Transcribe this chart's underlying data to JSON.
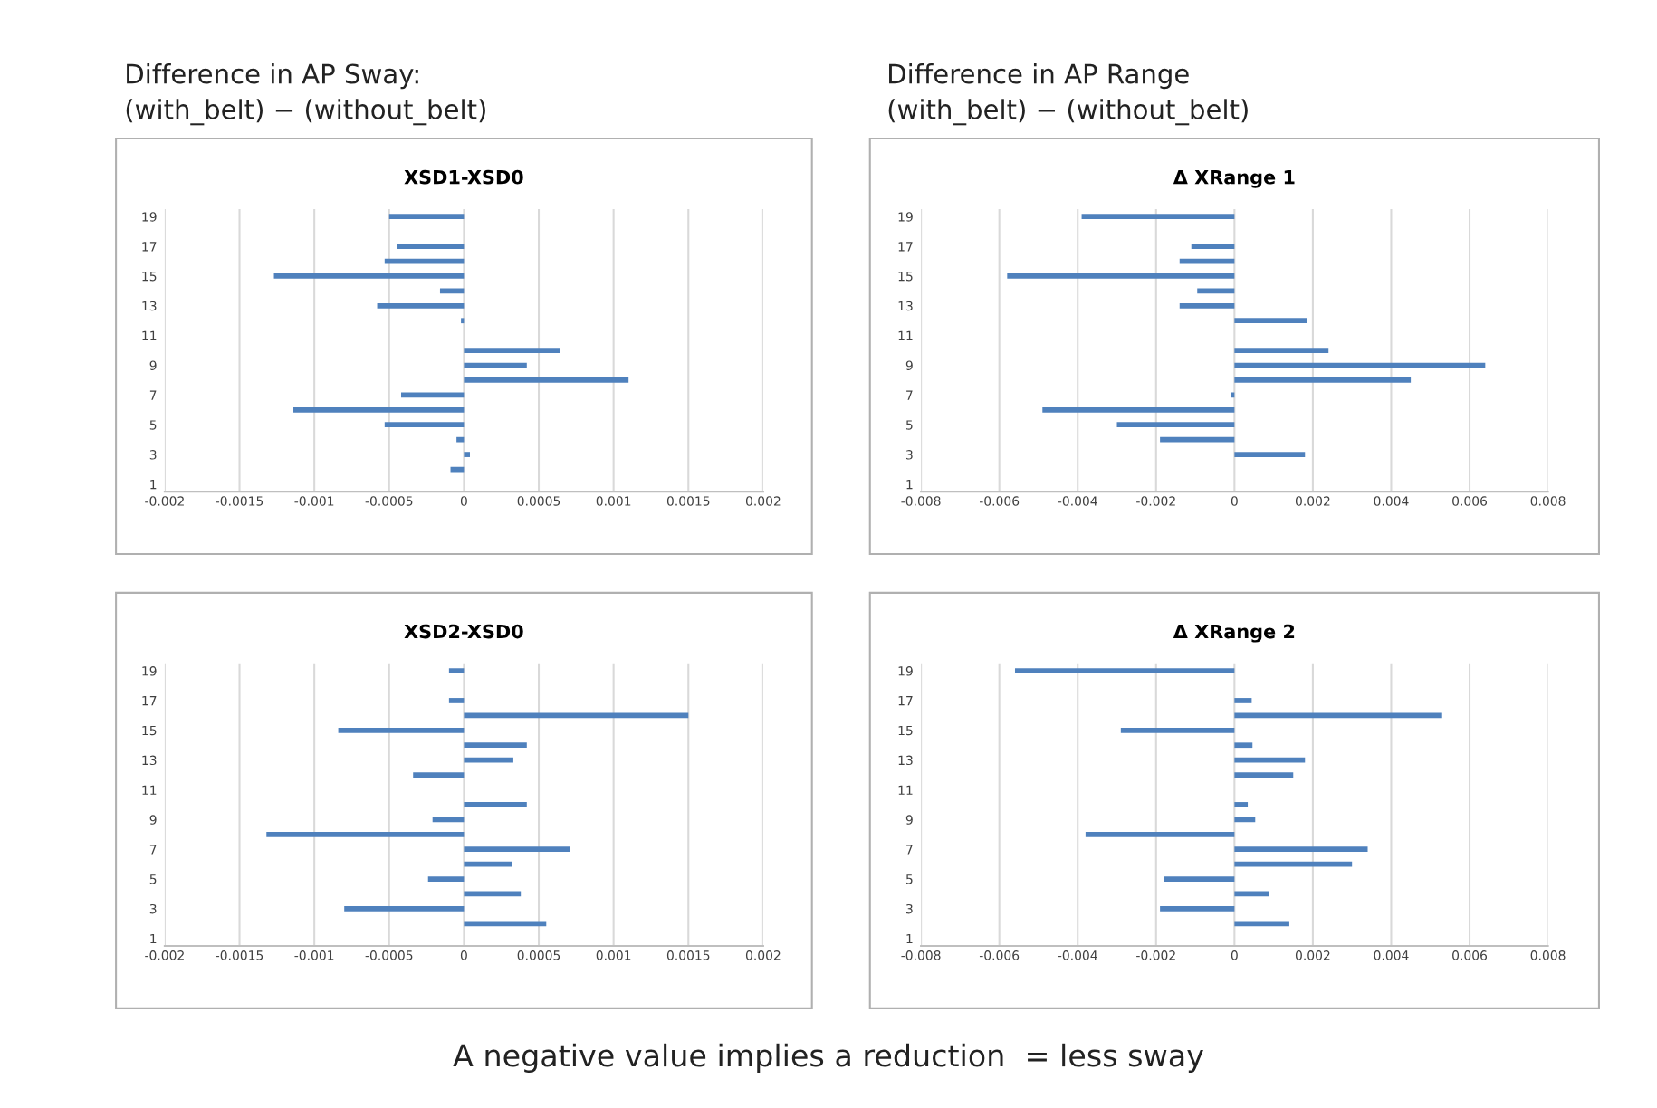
{
  "chart_data": [
    {
      "type": "bar",
      "orientation": "horizontal",
      "title": "XSD1-XSD0",
      "annotations": [
        "Difference in AP Sway:\n(with_belt) − (without_belt)"
      ],
      "categories": [
        "19",
        null,
        "17",
        null,
        "15",
        null,
        "13",
        null,
        "11",
        null,
        "9",
        null,
        "7",
        null,
        "5",
        null,
        "3",
        null,
        "1"
      ],
      "values": [
        -0.0005,
        0,
        -0.00045,
        -0.00053,
        -0.00127,
        -0.00016,
        -0.00058,
        -2e-05,
        0,
        0.00064,
        0.00042,
        0.0011,
        -0.00042,
        -0.00114,
        -0.00053,
        -5e-05,
        4e-05,
        -9e-05,
        0
      ],
      "color": "#4f81bd",
      "xlim": [
        -0.002,
        0.002
      ],
      "xticks": [
        -0.002,
        -0.0015,
        -0.001,
        -0.0005,
        0,
        0.0005,
        0.001,
        0.0015,
        0.002
      ],
      "grid": "x"
    },
    {
      "type": "bar",
      "orientation": "horizontal",
      "title": "Δ XRange 1",
      "annotations": [
        " Difference in AP Range\n (with_belt) − (without_belt)"
      ],
      "categories": [
        "19",
        null,
        "17",
        null,
        "15",
        null,
        "13",
        null,
        "11",
        null,
        "9",
        null,
        "7",
        null,
        "5",
        null,
        "3",
        null,
        "1"
      ],
      "values": [
        -0.0039,
        0,
        -0.0011,
        -0.0014,
        -0.0058,
        -0.00095,
        -0.0014,
        0.00185,
        0,
        0.0024,
        0.0064,
        0.0045,
        -0.0001,
        -0.0049,
        -0.003,
        -0.0019,
        0.0018,
        0,
        0
      ],
      "color": "#4f81bd",
      "xlim": [
        -0.008,
        0.008
      ],
      "xticks": [
        -0.008,
        -0.006,
        -0.004,
        -0.002,
        0,
        0.002,
        0.004,
        0.006,
        0.008
      ],
      "grid": "x"
    },
    {
      "type": "bar",
      "orientation": "horizontal",
      "title": "XSD2-XSD0",
      "categories": [
        "19",
        null,
        "17",
        null,
        "15",
        null,
        "13",
        null,
        "11",
        null,
        "9",
        null,
        "7",
        null,
        "5",
        null,
        "3",
        null,
        "1"
      ],
      "values": [
        -0.0001,
        0,
        -0.0001,
        0.0015,
        -0.00084,
        0.00042,
        0.00033,
        -0.00034,
        0,
        0.00042,
        -0.00021,
        -0.00132,
        0.00071,
        0.00032,
        -0.00024,
        0.00038,
        -0.0008,
        0.00055,
        0
      ],
      "color": "#4f81bd",
      "xlim": [
        -0.002,
        0.002
      ],
      "xticks": [
        -0.002,
        -0.0015,
        -0.001,
        -0.0005,
        0,
        0.0005,
        0.001,
        0.0015,
        0.002
      ],
      "grid": "x"
    },
    {
      "type": "bar",
      "orientation": "horizontal",
      "title": "Δ XRange 2",
      "annotations": [
        "A negative value implies a reduction  = less sway"
      ],
      "categories": [
        "19",
        null,
        "17",
        null,
        "15",
        null,
        "13",
        null,
        "11",
        null,
        "9",
        null,
        "7",
        null,
        "5",
        null,
        "3",
        null,
        "1"
      ],
      "values": [
        -0.0056,
        0,
        0.00044,
        0.0053,
        -0.0029,
        0.00046,
        0.0018,
        0.0015,
        0,
        0.00034,
        0.00053,
        -0.0038,
        0.0034,
        0.003,
        -0.0018,
        0.00087,
        -0.0019,
        0.0014,
        0
      ],
      "color": "#4f81bd",
      "xlim": [
        -0.008,
        0.008
      ],
      "xticks": [
        -0.008,
        -0.006,
        -0.004,
        -0.002,
        0,
        0.002,
        0.004,
        0.006,
        0.008
      ],
      "grid": "x"
    }
  ]
}
